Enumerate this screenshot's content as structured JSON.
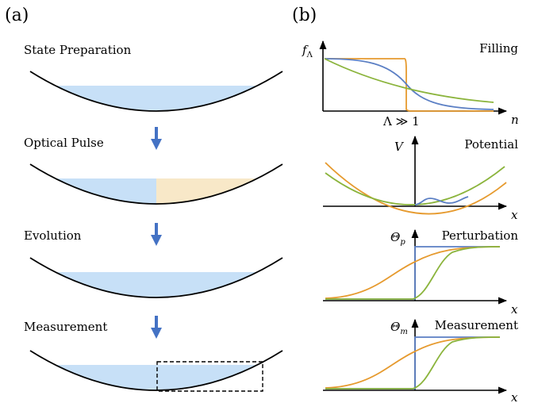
{
  "panel_a": {
    "label": "(a)",
    "steps": [
      {
        "label": "State Preparation"
      },
      {
        "label": "Optical Pulse"
      },
      {
        "label": "Evolution"
      },
      {
        "label": "Measurement"
      }
    ]
  },
  "panel_b": {
    "label": "(b)",
    "filling": {
      "title": "Filling",
      "ylabel": "f",
      "ylabel_sub": "Λ",
      "xlabel": "n",
      "marker": "Λ ≫ 1"
    },
    "potential": {
      "title": "Potential",
      "ylabel": "V",
      "xlabel": "x"
    },
    "perturbation": {
      "title": "Perturbation",
      "ylabel": "Θ",
      "ylabel_sub": "p",
      "xlabel": "x"
    },
    "measurement": {
      "title": "Measurement",
      "ylabel": "Θ",
      "ylabel_sub": "m",
      "xlabel": "x"
    }
  },
  "colors": {
    "water_blue": "#c7e0f7",
    "water_beige": "#f8e8c8",
    "arrow_blue": "#4472c4",
    "curve_blue": "#5b7fc4",
    "curve_orange": "#e69a2e",
    "curve_green": "#8bb43c"
  }
}
